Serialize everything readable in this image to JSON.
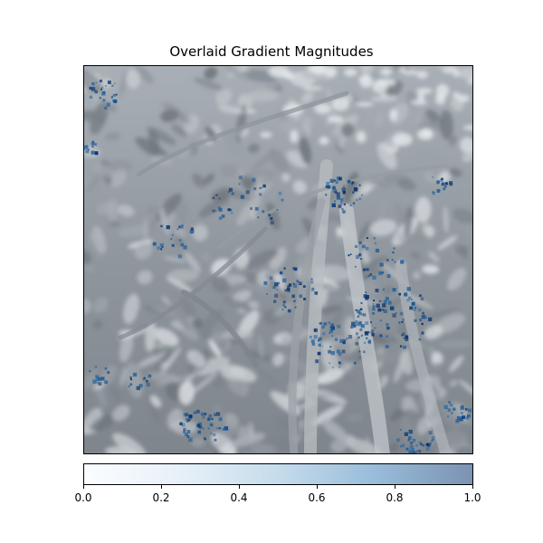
{
  "chart_data": {
    "type": "heatmap",
    "title": "Overlaid Gradient Magnitudes",
    "xlabel": "",
    "ylabel": "",
    "background": "grayscale forest photograph",
    "colormap": "Blues",
    "colorbar": {
      "range": [
        0.0,
        1.0
      ],
      "ticks": [
        0.0,
        0.2,
        0.4,
        0.6,
        0.8,
        1.0
      ],
      "tick_labels": [
        "0.0",
        "0.2",
        "0.4",
        "0.6",
        "0.8",
        "1.0"
      ],
      "color_low": "#f7fbff",
      "color_high": "#08306b",
      "alpha": 0.5
    },
    "axes_ticks_visible": false,
    "grid": false
  }
}
